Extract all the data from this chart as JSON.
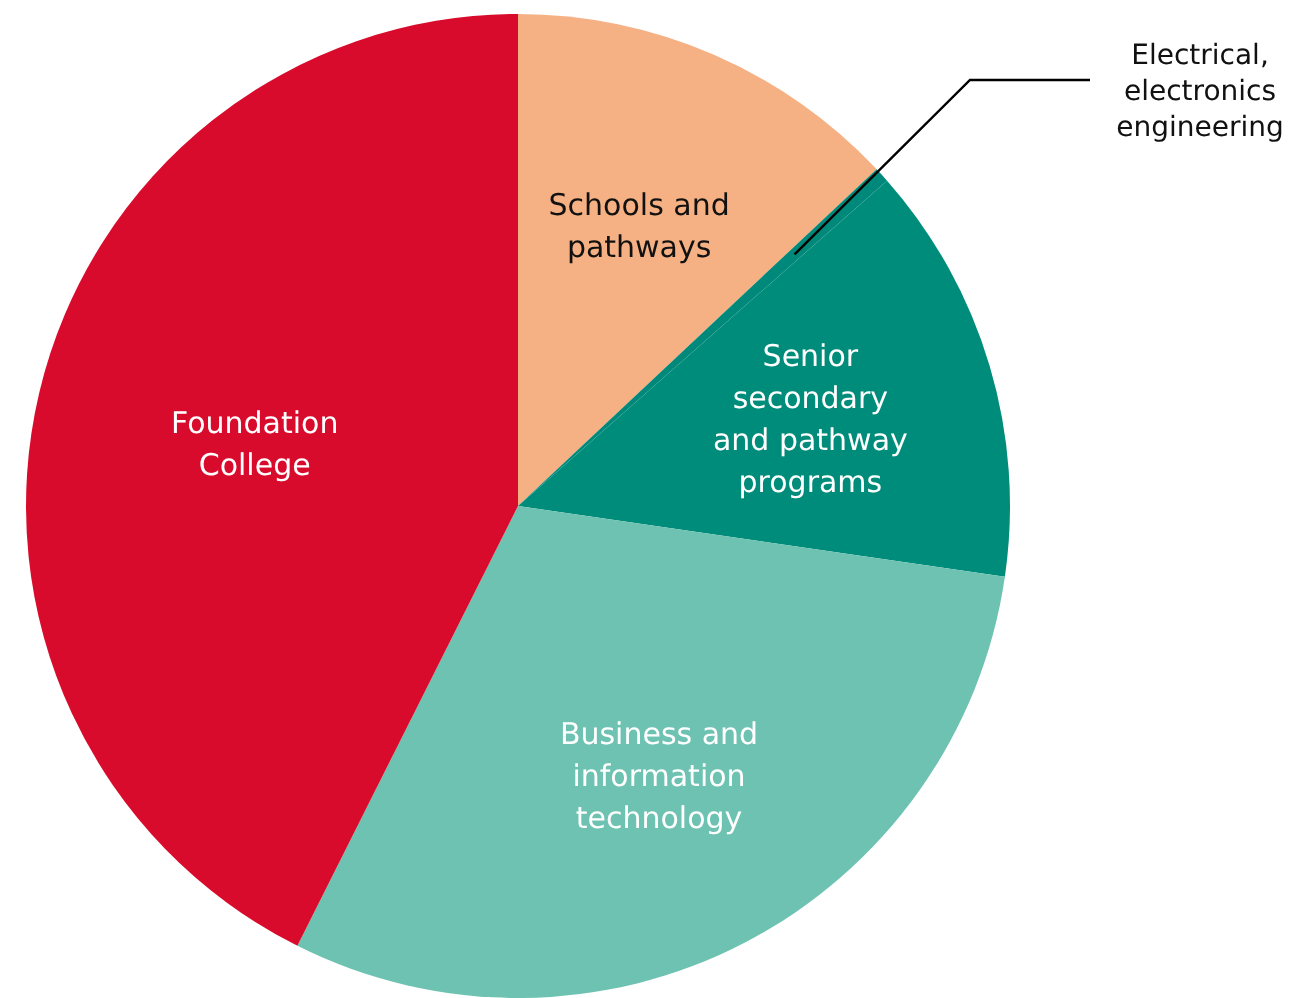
{
  "chart_data": {
    "type": "pie",
    "categories": [
      "Schools and pathways",
      "Electrical, electronics engineering",
      "Senior secondary and pathway programs",
      "Business and information technology",
      "Foundation College"
    ],
    "values": [
      13,
      0.5,
      13.8,
      30.1,
      42.6
    ],
    "colors": [
      "#f5b183",
      "#00897a",
      "#008c7a",
      "#6dc2b1",
      "#d90b2c"
    ]
  }
}
